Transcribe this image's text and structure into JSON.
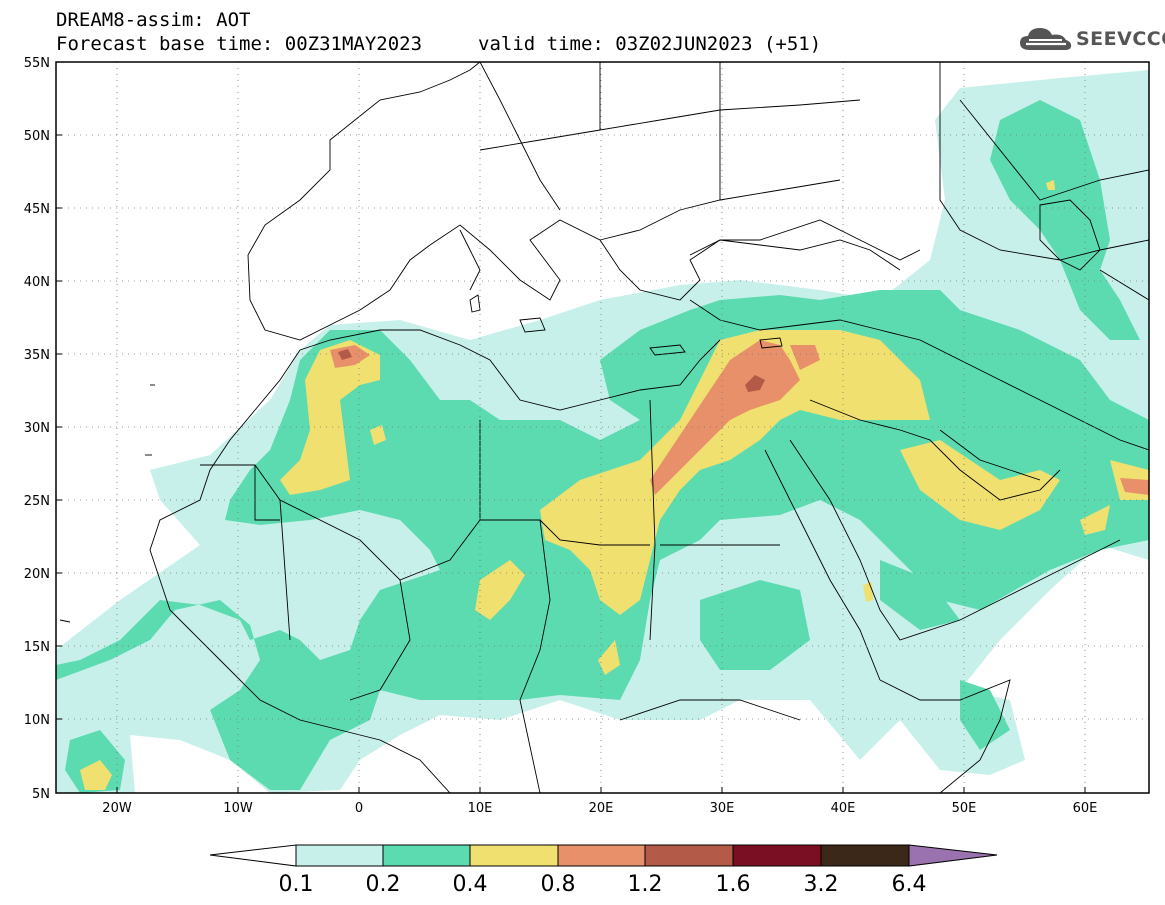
{
  "header": {
    "title": "DREAM8-assim: AOT",
    "base_time": "Forecast base time: 00Z31MAY2023",
    "valid_time": "valid time: 03Z02JUN2023 (+51)"
  },
  "logo": {
    "text": "SEEVCCC",
    "icon": "cloud-icon"
  },
  "axes": {
    "lat_labels": [
      "55N",
      "50N",
      "45N",
      "40N",
      "35N",
      "30N",
      "25N",
      "20N",
      "15N",
      "10N",
      "5N"
    ],
    "lon_labels": [
      "20W",
      "10W",
      "0",
      "10E",
      "20E",
      "30E",
      "40E",
      "50E",
      "60E"
    ],
    "lat_range": [
      5,
      55
    ],
    "lon_range": [
      -25,
      65
    ]
  },
  "colorbar": {
    "levels": [
      "0.1",
      "0.2",
      "0.4",
      "0.8",
      "1.2",
      "1.6",
      "3.2",
      "6.4"
    ],
    "colors": [
      "#c8f0ea",
      "#5cdbb0",
      "#f0e070",
      "#e8906a",
      "#b35a48",
      "#7a0f24",
      "#3b2818",
      "#9b72b0"
    ],
    "lower_extend_color": "#ffffff"
  },
  "colors": {
    "c1": "#c8f0ea",
    "c2": "#5cdbb0",
    "c3": "#f0e070",
    "c4": "#e8906a",
    "c5": "#b35a48",
    "c6": "#7a0f24"
  }
}
